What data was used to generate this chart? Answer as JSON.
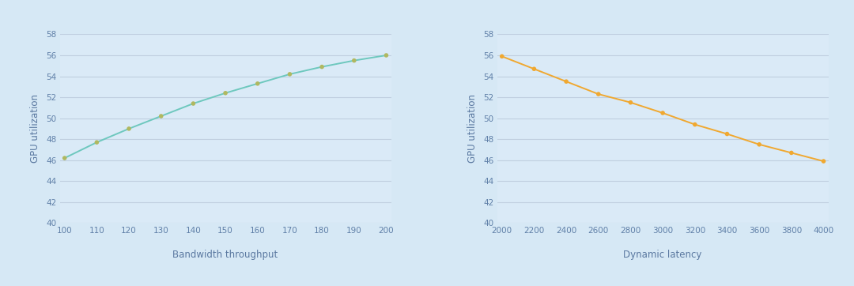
{
  "chart1": {
    "x": [
      100,
      110,
      120,
      130,
      140,
      150,
      160,
      170,
      180,
      190,
      200
    ],
    "y": [
      46.2,
      47.7,
      49.0,
      50.2,
      51.4,
      52.4,
      53.3,
      54.2,
      54.9,
      55.5,
      56.0
    ],
    "line_color": "#6ec8be",
    "marker_color": "#b0b860",
    "xlabel": "Bandwidth throughput",
    "ylabel": "GPU utilization",
    "ylim": [
      40,
      58
    ],
    "yticks": [
      40,
      42,
      44,
      46,
      48,
      50,
      52,
      54,
      56,
      58
    ],
    "xticks": [
      100,
      110,
      120,
      130,
      140,
      150,
      160,
      170,
      180,
      190,
      200
    ]
  },
  "chart2": {
    "x": [
      2000,
      2200,
      2400,
      2600,
      2800,
      3000,
      3200,
      3400,
      3600,
      3800,
      4000
    ],
    "y": [
      55.9,
      54.7,
      53.5,
      52.3,
      51.5,
      50.5,
      49.4,
      48.5,
      47.5,
      46.7,
      45.9
    ],
    "line_color": "#f0a830",
    "marker_color": "#f0a830",
    "xlabel": "Dynamic latency",
    "ylabel": "GPU utilization",
    "ylim": [
      40,
      58
    ],
    "yticks": [
      40,
      42,
      44,
      46,
      48,
      50,
      52,
      54,
      56,
      58
    ],
    "xticks": [
      2000,
      2200,
      2400,
      2600,
      2800,
      3000,
      3200,
      3400,
      3600,
      3800,
      4000
    ]
  },
  "background_color": "#d6e8f5",
  "plot_bg_color": "#daeaf7",
  "grid_color": "#c0cfe0",
  "tick_color": "#6080a8",
  "label_color": "#5a78a0",
  "tick_fontsize": 7.5,
  "label_fontsize": 8.5,
  "marker_size": 4,
  "line_width": 1.4
}
